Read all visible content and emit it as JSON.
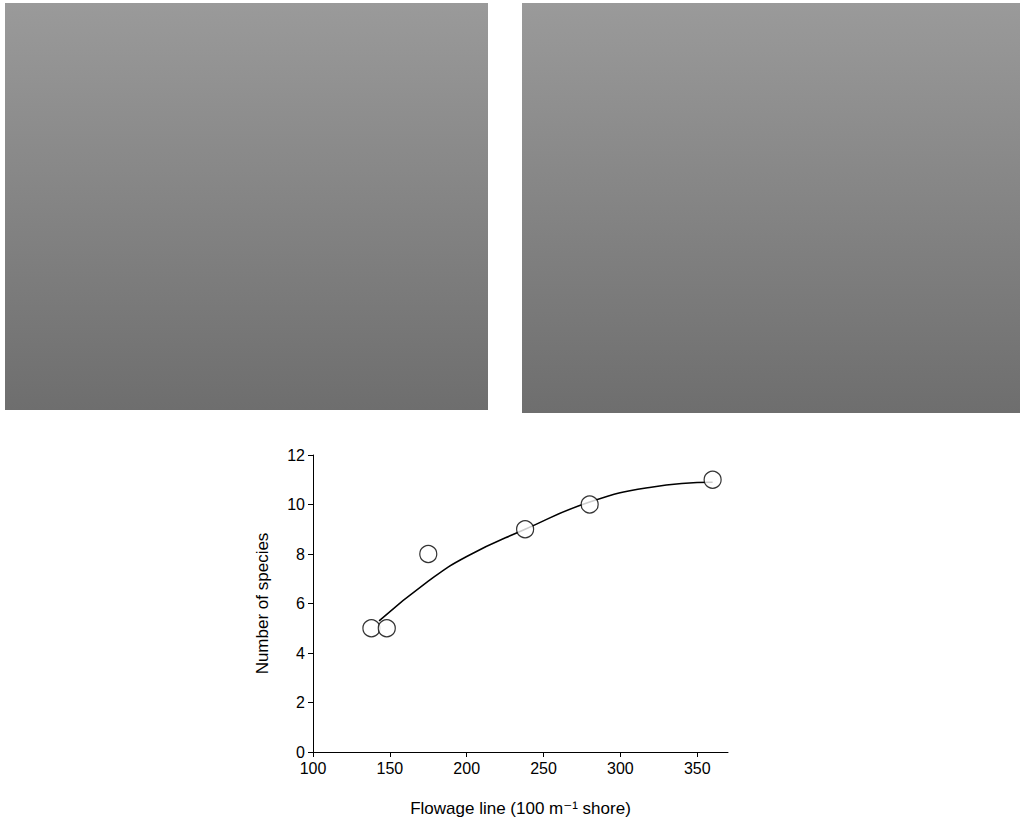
{
  "chart_data": {
    "type": "scatter",
    "x_label": "Flowage line (100 m⁻¹ shore)",
    "y_label": "Number of species",
    "xlim": [
      100,
      370
    ],
    "xticks": [
      100,
      150,
      200,
      250,
      300,
      350
    ],
    "ylim": [
      0,
      12
    ],
    "yticks": [
      0,
      2,
      4,
      6,
      8,
      10,
      12
    ],
    "grid": false,
    "series": [
      {
        "type": "scatter",
        "marker": "circle",
        "color": "#000000",
        "x": [
          138,
          148,
          175,
          238,
          280,
          360
        ],
        "values": [
          5,
          5,
          8,
          9,
          10,
          11
        ]
      },
      {
        "type": "line",
        "line_style": "solid",
        "color": "#000000",
        "x": [
          143,
          175,
          200,
          238,
          280,
          320,
          360
        ],
        "values": [
          5.3,
          6.9,
          7.9,
          9.0,
          10.1,
          10.7,
          10.9
        ]
      }
    ]
  }
}
